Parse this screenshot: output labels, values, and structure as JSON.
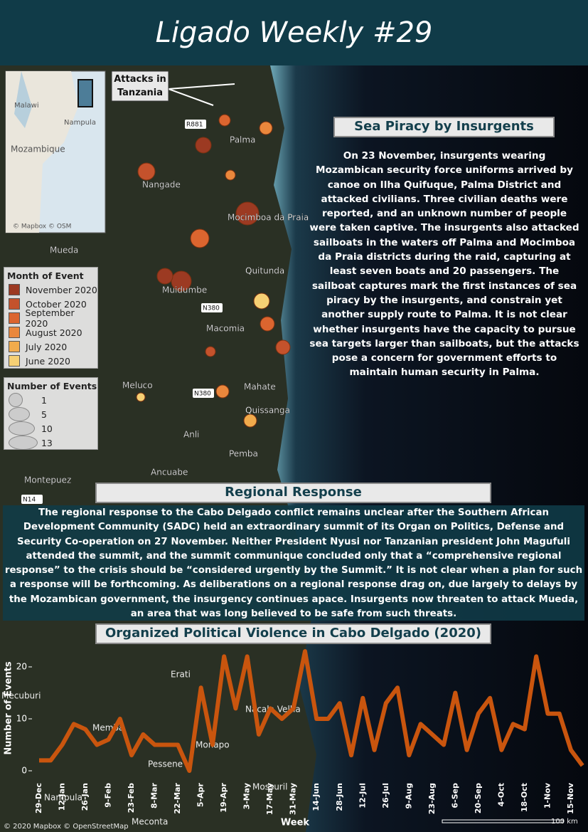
{
  "header": {
    "title": "Ligado Weekly #29"
  },
  "map": {
    "inset_labels": [
      "Malawi",
      "Nampula",
      "Mozambique",
      "© Mapbox © OSM"
    ],
    "callout": "Attacks in Tanzania",
    "places": [
      "Palma",
      "Nangade",
      "Mocimboa da Praia",
      "Mueda",
      "Quitunda",
      "Macomia",
      "Meluco",
      "Mahate",
      "Quissanga",
      "Anli",
      "Pemba",
      "Ancuabe",
      "Montepuez",
      "Muidumbe"
    ],
    "roads": [
      "R881",
      "N380",
      "N380",
      "N14"
    ],
    "legend_month": {
      "title": "Month of Event",
      "items": [
        {
          "label": "November 2020",
          "color": "#9c3a22"
        },
        {
          "label": "October 2020",
          "color": "#c4522c"
        },
        {
          "label": "September 2020",
          "color": "#db652f"
        },
        {
          "label": "August 2020",
          "color": "#ea873c"
        },
        {
          "label": "July 2020",
          "color": "#f1ab4c"
        },
        {
          "label": "June 2020",
          "color": "#f6d074"
        }
      ]
    },
    "legend_size": {
      "title": "Number of Events",
      "items": [
        1,
        5,
        10,
        13
      ]
    }
  },
  "piracy": {
    "title": "Sea Piracy by Insurgents",
    "body": "On 23 November, insurgents wearing Mozambican security force uniforms arrived by canoe on Ilha Quifuque, Palma District and attacked civilians. Three civilian deaths were reported, and an unknown number of people were taken captive. The insurgents also attacked sailboats in the waters off Palma and Mocimboa da Praia districts during the raid, capturing at least seven boats and 20 passengers. The sailboat captures mark the first instances of sea piracy by the insurgents, and constrain yet another supply route to Palma. It is not clear whether insurgents have the capacity to pursue sea targets larger than sailboats, but the attacks pose a concern for government efforts to maintain human security in Palma."
  },
  "regional": {
    "title": "Regional Response",
    "body": "The regional response to the Cabo Delgado conflict remains unclear after the Southern African Development Community (SADC) held an extraordinary summit of its Organ on Politics, Defense and Security Co-operation on 27 November. Neither President Nyusi nor Tanzanian president John Magufuli attended the summit, and the summit communique concluded only that a “comprehensive regional response” to the crisis should be “considered urgently by the Summit.” It is not clear when a plan for such a response will be forthcoming. As deliberations on a regional response drag on, due largely to delays by the Mozambican government, the insurgency continues apace. Insurgents now threaten to attack Mueda, an area that was long believed to be safe from such threats."
  },
  "chart_data": {
    "type": "line",
    "title": "Organized Political Violence in Cabo Delgado (2020)",
    "x_label": "Week",
    "y_label": "Number of Events",
    "categories": [
      "29-Dec",
      null,
      "12-Jan",
      null,
      "26-Jan",
      null,
      "9-Feb",
      null,
      "23-Feb",
      null,
      "8-Mar",
      null,
      "22-Mar",
      null,
      "5-Apr",
      null,
      "19-Apr",
      null,
      "3-May",
      null,
      "17-May",
      null,
      "31-May",
      null,
      "14-Jun",
      null,
      "28-Jun",
      null,
      "12-Jul",
      null,
      "26-Jul",
      null,
      "9-Aug",
      null,
      "23-Aug",
      null,
      "6-Sep",
      null,
      "20-Sep",
      null,
      "4-Oct",
      null,
      "18-Oct",
      null,
      "1-Nov",
      null,
      "15-Nov",
      null
    ],
    "series": [
      {
        "name": "Number of Events",
        "color": "#c9550e",
        "values": [
          2,
          2,
          5,
          9,
          8,
          5,
          6,
          10,
          3,
          7,
          5,
          5,
          5,
          0,
          16,
          5,
          22,
          12,
          22,
          7,
          12,
          10,
          12,
          23,
          10,
          10,
          13,
          3,
          14,
          4,
          13,
          16,
          3,
          9,
          7,
          5,
          15,
          4,
          11,
          14,
          4,
          9,
          8,
          22,
          11,
          11,
          4,
          1
        ]
      }
    ],
    "ylim": [
      -2,
      24
    ],
    "yticks": [
      0,
      10,
      20
    ],
    "background_labels": [
      "Erati",
      "Mecuburi",
      "Nacala Velha",
      "Memba",
      "Monapo",
      "Pessene",
      "Mossuril",
      "Nampula",
      "Meconta",
      "© 2020 Mapbox © OpenStreetMap",
      "100 km"
    ]
  }
}
